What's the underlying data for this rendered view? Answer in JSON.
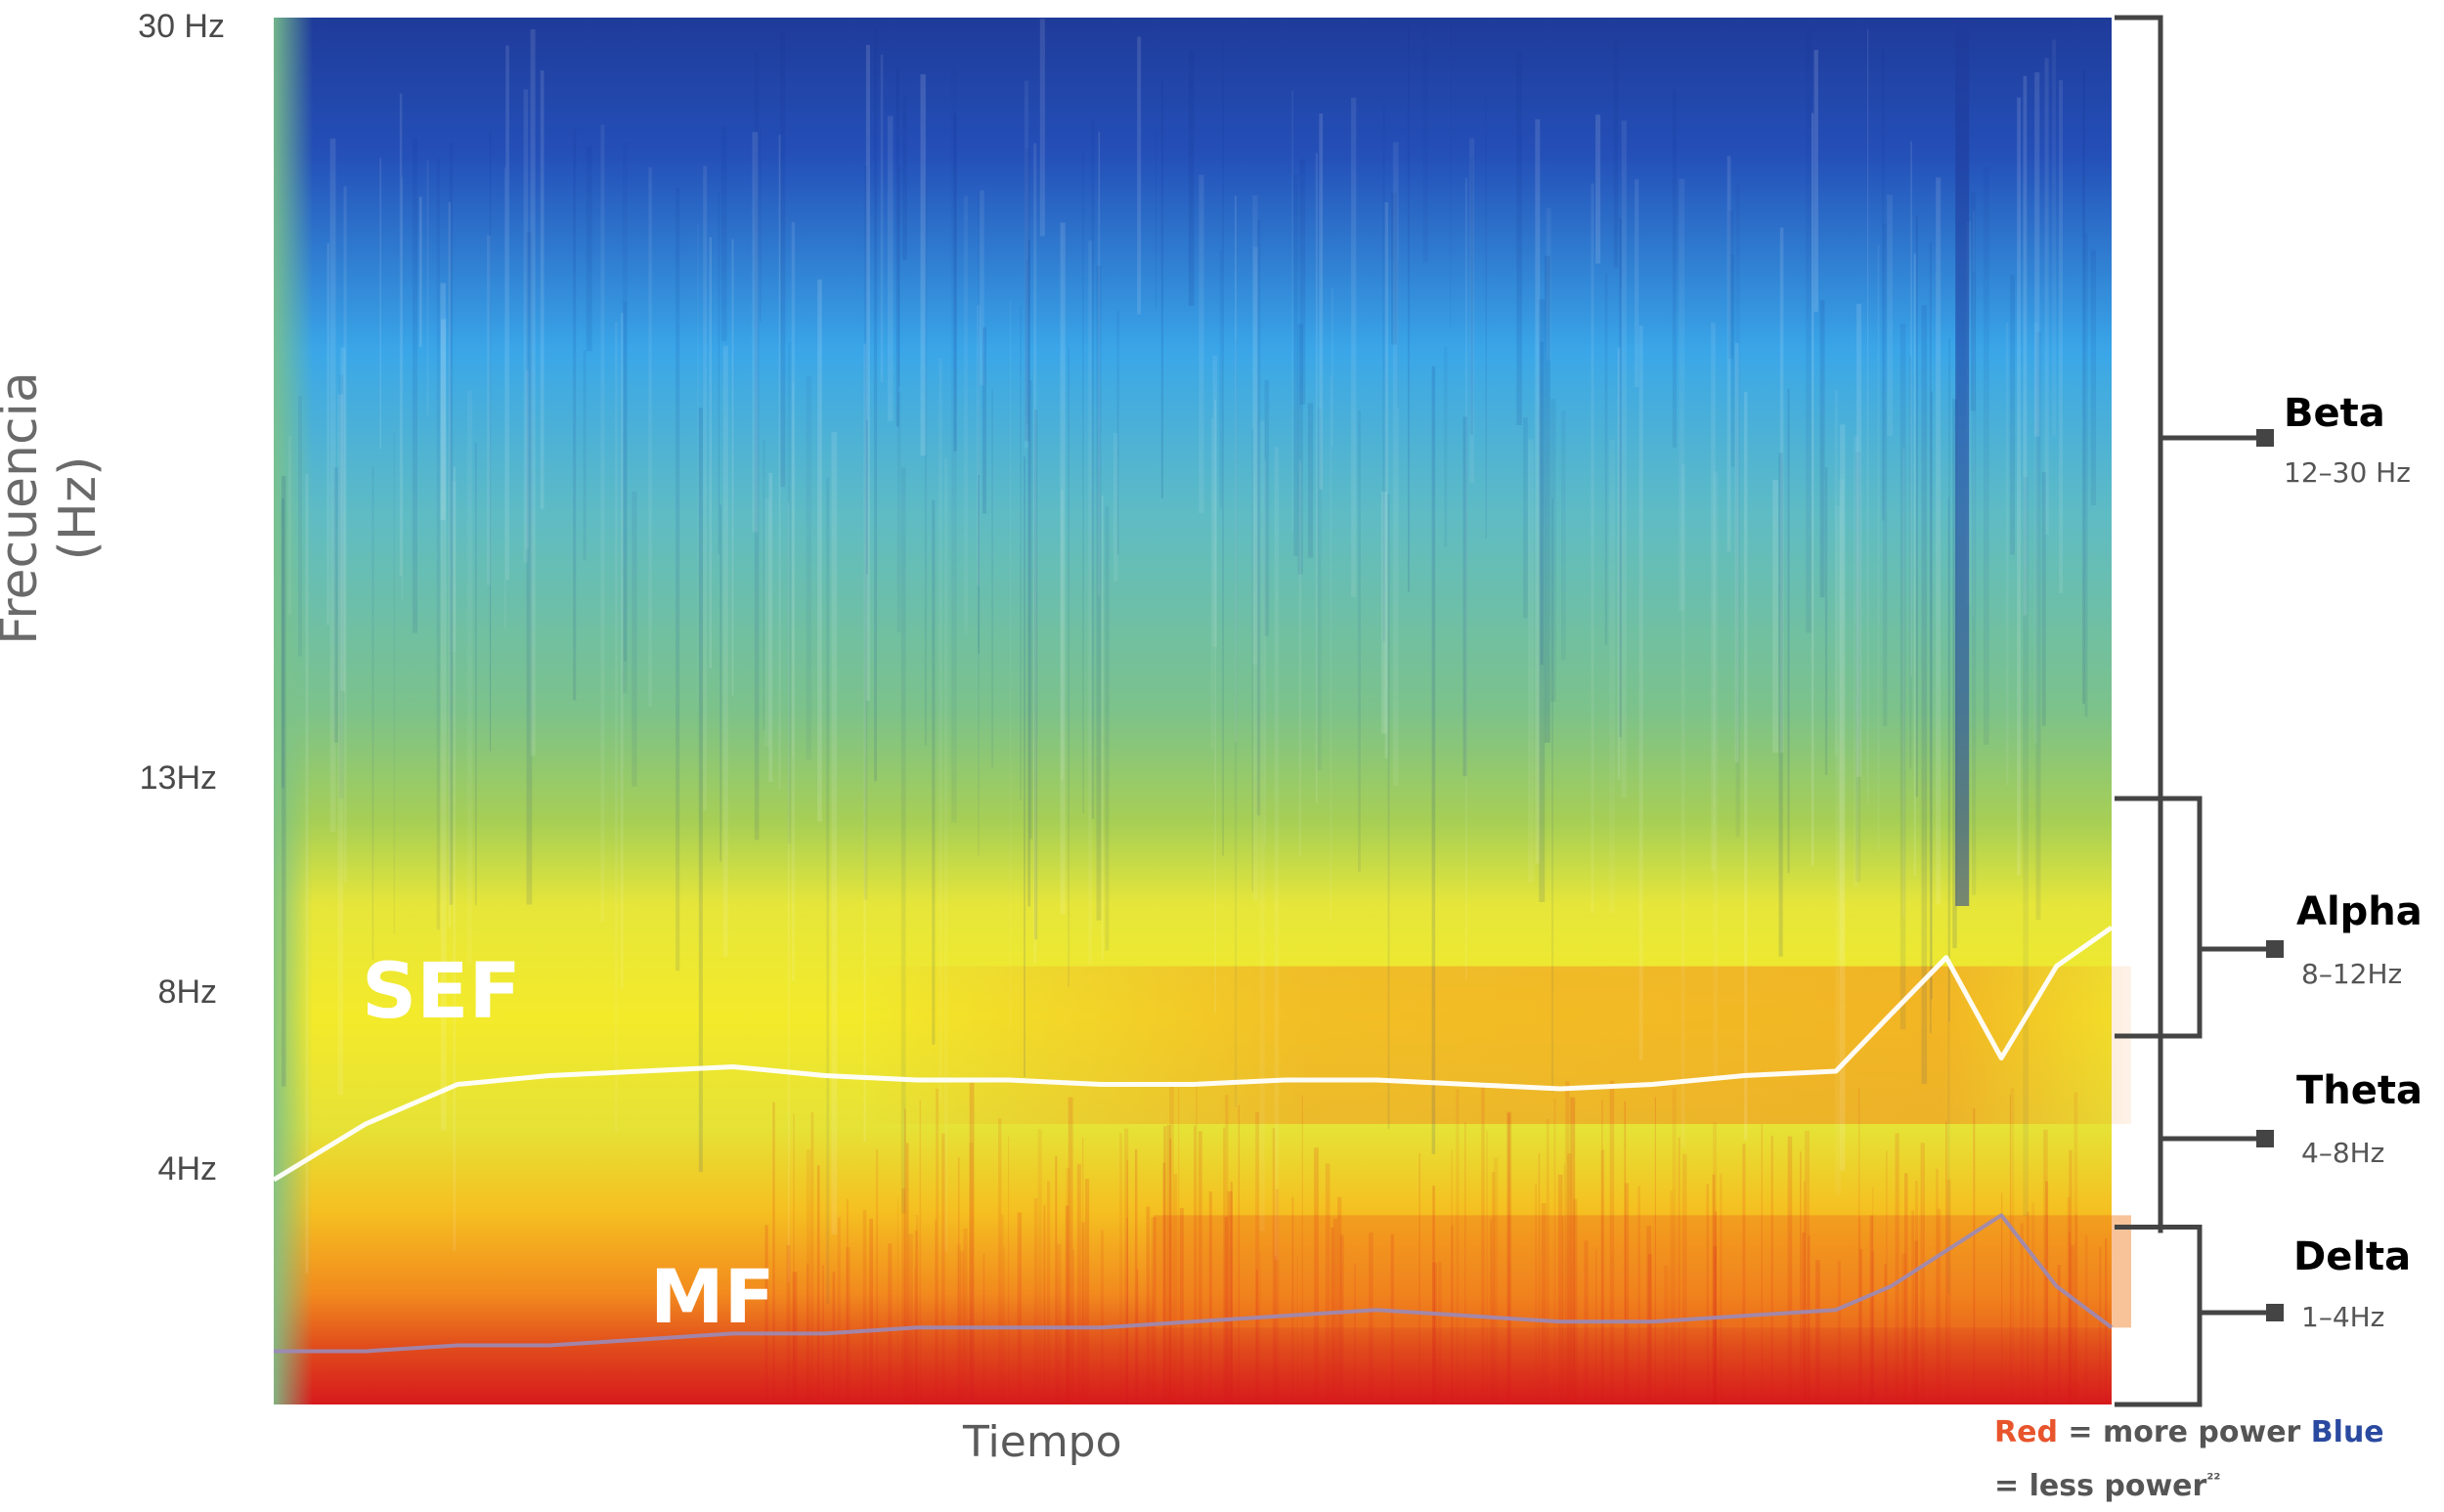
{
  "chart_data": {
    "type": "heatmap",
    "title": "",
    "xlabel": "Tiempo",
    "ylabel": "Frecuencia (Hz)",
    "y_ticks": [
      {
        "label": "30 Hz",
        "value": 30
      },
      {
        "label": "13Hz",
        "value": 13
      },
      {
        "label": "8Hz",
        "value": 8
      },
      {
        "label": "4Hz",
        "value": 4
      }
    ],
    "ylim": [
      0,
      30
    ],
    "y_scale": "non-linear (stretched low frequencies)",
    "color_scale": {
      "high": "#d7191c",
      "low": "#1f3b9a",
      "description_low_to_high": [
        "#1f3b9a",
        "#3aa6e8",
        "#7cc28a",
        "#f0ea2a",
        "#f5a21f",
        "#d7191c"
      ]
    },
    "bands": [
      {
        "name": "Beta",
        "range": "12–30 Hz",
        "low": 12,
        "high": 30
      },
      {
        "name": "Alpha",
        "range": "8–12Hz",
        "low": 8,
        "high": 12
      },
      {
        "name": "Theta",
        "range": "4–8Hz",
        "low": 4,
        "high": 8
      },
      {
        "name": "Delta",
        "range": "1–4Hz",
        "low": 1,
        "high": 4
      }
    ],
    "series": [
      {
        "name": "SEF",
        "color": "#ffffff",
        "x": [
          0,
          0.05,
          0.1,
          0.15,
          0.2,
          0.25,
          0.3,
          0.35,
          0.4,
          0.45,
          0.5,
          0.55,
          0.6,
          0.65,
          0.7,
          0.75,
          0.8,
          0.85,
          0.88,
          0.91,
          0.94,
          0.97,
          1.0
        ],
        "values": [
          3.8,
          5.0,
          5.9,
          6.1,
          6.2,
          6.3,
          6.1,
          6.0,
          6.0,
          5.9,
          5.9,
          6.0,
          6.0,
          5.9,
          5.8,
          5.9,
          6.1,
          6.2,
          7.5,
          8.8,
          6.5,
          8.6,
          9.5
        ]
      },
      {
        "name": "MF",
        "color": "#9b8ab8",
        "x": [
          0,
          0.05,
          0.1,
          0.15,
          0.2,
          0.25,
          0.3,
          0.35,
          0.4,
          0.45,
          0.5,
          0.55,
          0.6,
          0.65,
          0.7,
          0.75,
          0.8,
          0.85,
          0.88,
          0.91,
          0.94,
          0.97,
          1.0
        ],
        "values": [
          0.9,
          0.9,
          1.0,
          1.0,
          1.1,
          1.2,
          1.2,
          1.3,
          1.3,
          1.3,
          1.4,
          1.5,
          1.6,
          1.5,
          1.4,
          1.4,
          1.5,
          1.6,
          2.0,
          2.6,
          3.2,
          2.0,
          1.3
        ]
      }
    ],
    "curve_labels": [
      {
        "text": "SEF"
      },
      {
        "text": "MF"
      }
    ]
  },
  "legend": {
    "red_word": "Red",
    "red_rest": " = more power ",
    "blue_word": "Blue",
    "line2": "= less power",
    "suffix": "²²",
    "red_color": "#e8542c",
    "blue_color": "#2a4aa0"
  },
  "colors": {
    "band_name": "#2a4a8f",
    "bracket": "#444444"
  }
}
